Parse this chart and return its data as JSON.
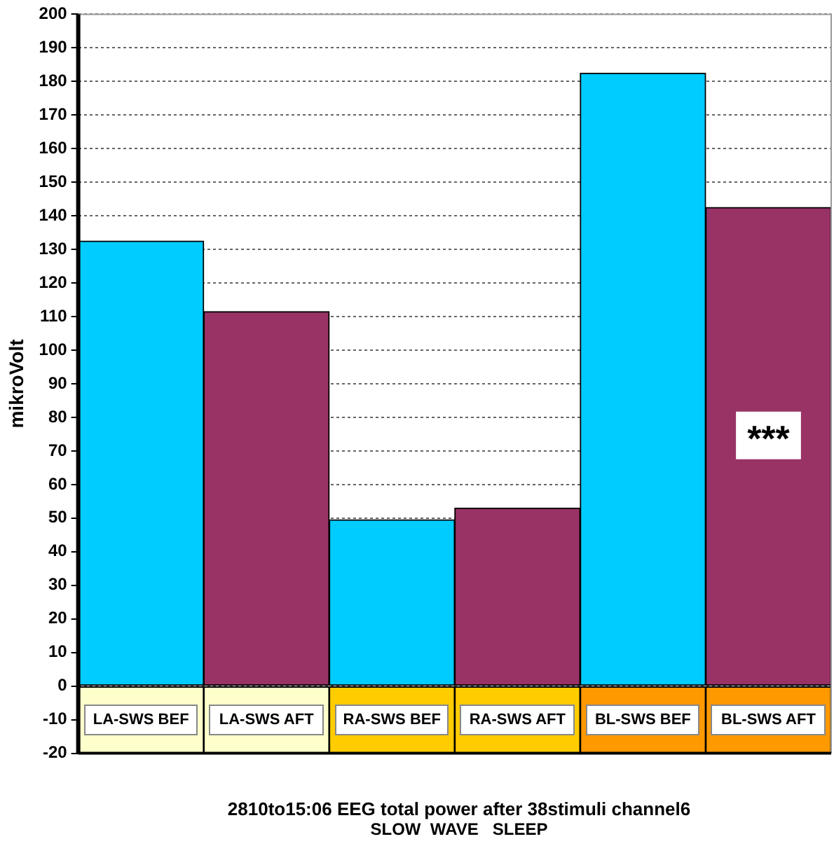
{
  "chart_data": {
    "type": "bar",
    "title": "2810to15:06 EEG total power after 38stimuli channel6",
    "subtitle": "SLOW  WAVE   SLEEP",
    "ylabel": "mikroVolt",
    "categories": [
      "LA-SWS BEF",
      "LA-SWS AFT",
      "RA-SWS BEF",
      "RA-SWS AFT",
      "BL-SWS BEF",
      "BL-SWS AFT"
    ],
    "series": [
      {
        "values": [
          132.5,
          111.5,
          49.5,
          53,
          182.5,
          142.5
        ],
        "colors": [
          "#00ccff",
          "#993366",
          "#00ccff",
          "#993366",
          "#00ccff",
          "#993366"
        ]
      },
      {
        "values": [
          -20,
          -20,
          -20,
          -20,
          -20,
          -20
        ],
        "colors": [
          "#ffffcc",
          "#ffffcc",
          "#ffcc00",
          "#ffcc00",
          "#ff9900",
          "#ff9900"
        ]
      }
    ],
    "ylim": [
      -20,
      200
    ],
    "yticks": [
      -20,
      -10,
      0,
      10,
      20,
      30,
      40,
      50,
      60,
      70,
      80,
      90,
      100,
      110,
      120,
      130,
      140,
      150,
      160,
      170,
      180,
      190,
      200
    ],
    "grid": "y",
    "stacked": true,
    "annotations": [
      "***"
    ]
  }
}
